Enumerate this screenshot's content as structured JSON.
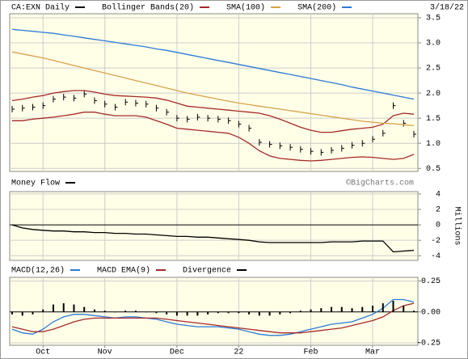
{
  "chart_data": [
    {
      "type": "line",
      "date": "3/18/22",
      "series": [
        {
          "name": "CA:EXN Daily",
          "color": "#000000",
          "marker": "tick",
          "values": [
            1.68,
            1.7,
            1.72,
            1.75,
            1.88,
            1.92,
            1.9,
            1.98,
            1.85,
            1.78,
            1.72,
            1.82,
            1.8,
            1.78,
            1.7,
            1.62,
            1.5,
            1.48,
            1.52,
            1.5,
            1.48,
            1.45,
            1.38,
            1.3,
            1.02,
            0.98,
            0.95,
            0.92,
            0.88,
            0.84,
            0.82,
            0.86,
            0.9,
            0.96,
            1.0,
            1.08,
            1.2,
            1.75,
            1.4,
            1.18
          ]
        },
        {
          "name": "Bollinger Bands(20)",
          "color": "#a52a2a",
          "values": [
            1.85,
            1.88,
            1.92,
            1.95,
            2.0,
            2.03,
            2.05,
            2.05,
            2.02,
            1.98,
            1.95,
            1.94,
            1.93,
            1.92,
            1.9,
            1.86,
            1.8,
            1.74,
            1.72,
            1.7,
            1.68,
            1.66,
            1.64,
            1.62,
            1.6,
            1.55,
            1.48,
            1.4,
            1.32,
            1.26,
            1.22,
            1.22,
            1.25,
            1.28,
            1.3,
            1.32,
            1.38,
            1.55,
            1.6,
            1.58
          ],
          "lower": [
            1.45,
            1.45,
            1.48,
            1.5,
            1.52,
            1.55,
            1.58,
            1.62,
            1.62,
            1.58,
            1.55,
            1.55,
            1.55,
            1.52,
            1.45,
            1.38,
            1.3,
            1.28,
            1.26,
            1.24,
            1.22,
            1.2,
            1.12,
            1.0,
            0.85,
            0.75,
            0.7,
            0.68,
            0.66,
            0.65,
            0.66,
            0.68,
            0.7,
            0.72,
            0.73,
            0.72,
            0.7,
            0.68,
            0.7,
            0.78
          ]
        },
        {
          "name": "SMA(100)",
          "color": "#d9a14a",
          "values": [
            2.82,
            2.78,
            2.74,
            2.7,
            2.65,
            2.6,
            2.55,
            2.5,
            2.45,
            2.4,
            2.35,
            2.3,
            2.25,
            2.2,
            2.15,
            2.1,
            2.05,
            2.0,
            1.96,
            1.92,
            1.88,
            1.84,
            1.8,
            1.77,
            1.74,
            1.71,
            1.68,
            1.65,
            1.62,
            1.59,
            1.56,
            1.53,
            1.5,
            1.47,
            1.44,
            1.42,
            1.4,
            1.39,
            1.37,
            1.35
          ]
        },
        {
          "name": "SMA(200)",
          "color": "#2b7bd6",
          "values": [
            3.27,
            3.25,
            3.23,
            3.21,
            3.19,
            3.16,
            3.13,
            3.1,
            3.07,
            3.04,
            3.01,
            2.98,
            2.95,
            2.92,
            2.88,
            2.85,
            2.81,
            2.77,
            2.73,
            2.69,
            2.65,
            2.61,
            2.57,
            2.53,
            2.49,
            2.45,
            2.41,
            2.37,
            2.33,
            2.29,
            2.25,
            2.21,
            2.17,
            2.12,
            2.08,
            2.04,
            2.0,
            1.96,
            1.92,
            1.88
          ]
        }
      ],
      "ylim": [
        0.44,
        3.58
      ],
      "yticks": [
        0.5,
        {
          "value": 1,
          "label": "1.0"
        },
        1.5,
        {
          "value": 2,
          "label": "2.0"
        },
        2.5,
        {
          "value": 3,
          "label": "3.0"
        },
        3.5
      ],
      "grid": true
    },
    {
      "type": "line",
      "y_label": "Millions",
      "annotation": "©BigCharts.com",
      "series": [
        {
          "name": "Money Flow",
          "color": "#000000",
          "values": [
            0,
            -0.4,
            -0.6,
            -0.7,
            -0.8,
            -0.8,
            -0.9,
            -0.9,
            -1.0,
            -1.0,
            -1.1,
            -1.1,
            -1.2,
            -1.2,
            -1.3,
            -1.4,
            -1.5,
            -1.5,
            -1.6,
            -1.6,
            -1.7,
            -1.8,
            -1.9,
            -2.0,
            -2.2,
            -2.3,
            -2.3,
            -2.3,
            -2.3,
            -2.3,
            -2.3,
            -2.2,
            -2.2,
            -2.2,
            -2.1,
            -2.1,
            -2.1,
            -3.5,
            -3.4,
            -3.3
          ]
        }
      ],
      "ylim": [
        -4.6,
        4.3
      ],
      "yticks": [
        -4,
        -2,
        0,
        2,
        4
      ],
      "grid": true
    },
    {
      "type": "line",
      "categories": [
        null,
        null,
        null,
        "Oct",
        null,
        null,
        null,
        null,
        null,
        "Nov",
        null,
        null,
        null,
        null,
        null,
        null,
        "Dec",
        null,
        null,
        null,
        null,
        null,
        "22",
        null,
        null,
        null,
        null,
        null,
        null,
        "Feb",
        null,
        null,
        null,
        null,
        null,
        "Mar",
        null,
        null,
        null,
        null
      ],
      "series": [
        {
          "name": "MACD(12,26)",
          "color": "#2b7bd6",
          "values": [
            -0.14,
            -0.17,
            -0.18,
            -0.14,
            -0.08,
            -0.04,
            -0.02,
            -0.02,
            -0.03,
            -0.04,
            -0.05,
            -0.04,
            -0.04,
            -0.05,
            -0.06,
            -0.08,
            -0.1,
            -0.11,
            -0.12,
            -0.12,
            -0.12,
            -0.13,
            -0.14,
            -0.16,
            -0.18,
            -0.19,
            -0.19,
            -0.18,
            -0.16,
            -0.14,
            -0.12,
            -0.1,
            -0.09,
            -0.08,
            -0.05,
            -0.02,
            0.03,
            0.1,
            0.1,
            0.08
          ]
        },
        {
          "name": "MACD EMA(9)",
          "color": "#a52a2a",
          "values": [
            -0.12,
            -0.14,
            -0.16,
            -0.16,
            -0.14,
            -0.11,
            -0.08,
            -0.06,
            -0.05,
            -0.05,
            -0.05,
            -0.05,
            -0.05,
            -0.05,
            -0.05,
            -0.06,
            -0.07,
            -0.08,
            -0.09,
            -0.1,
            -0.11,
            -0.12,
            -0.13,
            -0.14,
            -0.15,
            -0.16,
            -0.17,
            -0.17,
            -0.17,
            -0.16,
            -0.15,
            -0.14,
            -0.13,
            -0.11,
            -0.09,
            -0.07,
            -0.04,
            0.01,
            0.05,
            0.07
          ]
        },
        {
          "name": "Divergence",
          "color": "#000000",
          "marker": "bar",
          "values": [
            -0.02,
            -0.03,
            -0.02,
            0.02,
            0.06,
            0.07,
            0.06,
            0.04,
            0.02,
            0.01,
            0,
            0.01,
            0.01,
            0,
            -0.01,
            -0.02,
            -0.03,
            -0.03,
            -0.03,
            -0.02,
            -0.01,
            -0.01,
            -0.01,
            -0.02,
            -0.03,
            -0.03,
            -0.02,
            -0.01,
            0.01,
            0.02,
            0.03,
            0.04,
            0.04,
            0.03,
            0.04,
            0.05,
            0.07,
            0.09,
            0.05,
            0.01
          ]
        }
      ],
      "ylim": [
        -0.27,
        0.28
      ],
      "yticks": [
        -0.25,
        {
          "value": 0,
          "label": "0.00"
        },
        0.25
      ],
      "grid": true
    }
  ]
}
